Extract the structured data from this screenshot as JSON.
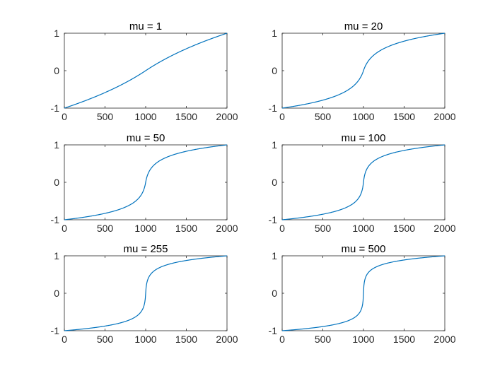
{
  "chart_data": [
    {
      "type": "line",
      "title": "mu = 1",
      "mu": 1,
      "xlim": [
        0,
        2000
      ],
      "ylim": [
        -1,
        1
      ],
      "xticks": [
        0,
        500,
        1000,
        1500,
        2000
      ],
      "yticks": [
        -1,
        0,
        1
      ],
      "series": [
        {
          "color": "#0072BD"
        }
      ]
    },
    {
      "type": "line",
      "title": "mu = 20",
      "mu": 20,
      "xlim": [
        0,
        2000
      ],
      "ylim": [
        -1,
        1
      ],
      "xticks": [
        0,
        500,
        1000,
        1500,
        2000
      ],
      "yticks": [
        -1,
        0,
        1
      ],
      "series": [
        {
          "color": "#0072BD"
        }
      ]
    },
    {
      "type": "line",
      "title": "mu = 50",
      "mu": 50,
      "xlim": [
        0,
        2000
      ],
      "ylim": [
        -1,
        1
      ],
      "xticks": [
        0,
        500,
        1000,
        1500,
        2000
      ],
      "yticks": [
        -1,
        0,
        1
      ],
      "series": [
        {
          "color": "#0072BD"
        }
      ]
    },
    {
      "type": "line",
      "title": "mu = 100",
      "mu": 100,
      "xlim": [
        0,
        2000
      ],
      "ylim": [
        -1,
        1
      ],
      "xticks": [
        0,
        500,
        1000,
        1500,
        2000
      ],
      "yticks": [
        -1,
        0,
        1
      ],
      "series": [
        {
          "color": "#0072BD"
        }
      ]
    },
    {
      "type": "line",
      "title": "mu = 255",
      "mu": 255,
      "xlim": [
        0,
        2000
      ],
      "ylim": [
        -1,
        1
      ],
      "xticks": [
        0,
        500,
        1000,
        1500,
        2000
      ],
      "yticks": [
        -1,
        0,
        1
      ],
      "series": [
        {
          "color": "#0072BD"
        }
      ]
    },
    {
      "type": "line",
      "title": "mu = 500",
      "mu": 500,
      "xlim": [
        0,
        2000
      ],
      "ylim": [
        -1,
        1
      ],
      "xticks": [
        0,
        500,
        1000,
        1500,
        2000
      ],
      "yticks": [
        -1,
        0,
        1
      ],
      "series": [
        {
          "color": "#0072BD"
        }
      ]
    }
  ]
}
